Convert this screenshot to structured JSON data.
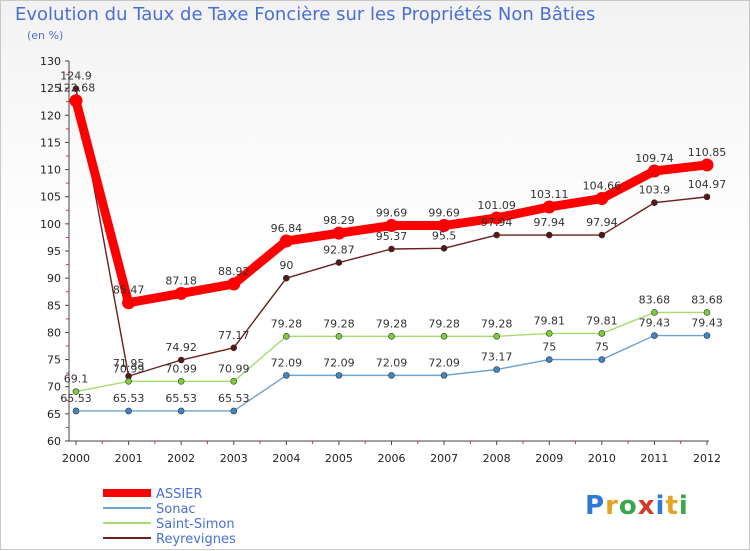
{
  "brand": {
    "text": "Proxiti",
    "letter_colors": [
      "#2f7ad6",
      "#e2a421",
      "#3aa84a",
      "#d23a2a",
      "#2f7ad6",
      "#e2a421",
      "#3aa84a"
    ]
  },
  "chart_data": {
    "type": "line",
    "title": "Evolution du Taux de Taxe Foncière sur les Propriétés Non Bâties",
    "ylabel": "(en %)",
    "xlabel": "",
    "ylim": [
      60,
      130
    ],
    "yticks": [
      60,
      65,
      70,
      75,
      80,
      85,
      90,
      95,
      100,
      105,
      110,
      115,
      120,
      125,
      130
    ],
    "grid": false,
    "legend_position": "bottom-left",
    "categories": [
      "2000",
      "2001",
      "2002",
      "2003",
      "2004",
      "2005",
      "2006",
      "2007",
      "2008",
      "2009",
      "2010",
      "2011",
      "2012"
    ],
    "series": [
      {
        "name": "Reyrevignes",
        "color": "#6b1f1f",
        "marker_color": "#5a1616",
        "labels": [
          "124.9",
          "71.95",
          "74.92",
          "77.17",
          "90",
          "92.87",
          "95.37",
          "95.5",
          "97.94",
          "97.94",
          "97.94",
          "103.9",
          "104.97"
        ],
        "values": [
          124.9,
          71.95,
          74.92,
          77.17,
          90,
          92.87,
          95.37,
          95.5,
          97.94,
          97.94,
          97.94,
          103.9,
          104.97
        ]
      },
      {
        "name": "Saint-Simon",
        "color": "#a6dc6e",
        "marker_color": "#7ccd3a",
        "labels": [
          "69.1",
          "70.99",
          "70.99",
          "70.99",
          "79.28",
          "79.28",
          "79.28",
          "79.28",
          "79.28",
          "79.81",
          "79.81",
          "83.68",
          "83.68"
        ],
        "values": [
          69.1,
          70.99,
          70.99,
          70.99,
          79.28,
          79.28,
          79.28,
          79.28,
          79.28,
          79.81,
          79.81,
          83.68,
          83.68
        ]
      },
      {
        "name": "Sonac",
        "color": "#6fa3d0",
        "marker_color": "#3f86c6",
        "labels": [
          "65.53",
          "65.53",
          "65.53",
          "65.53",
          "72.09",
          "72.09",
          "72.09",
          "72.09",
          "73.17",
          "75",
          "75",
          "79.43",
          "79.43"
        ],
        "values": [
          65.53,
          65.53,
          65.53,
          65.53,
          72.09,
          72.09,
          72.09,
          72.09,
          73.17,
          75,
          75,
          79.43,
          79.43
        ]
      },
      {
        "name": "ASSIER",
        "color": "#ff0000",
        "marker_color": "#ff0000",
        "labels": [
          "122.68",
          "85.47",
          "87.18",
          "88.92",
          "96.84",
          "98.29",
          "99.69",
          "99.69",
          "101.09",
          "103.11",
          "104.66",
          "109.74",
          "110.85"
        ],
        "values": [
          122.68,
          85.47,
          87.18,
          88.92,
          96.84,
          98.29,
          99.69,
          99.69,
          101.09,
          103.11,
          104.66,
          109.74,
          110.85
        ]
      }
    ]
  }
}
